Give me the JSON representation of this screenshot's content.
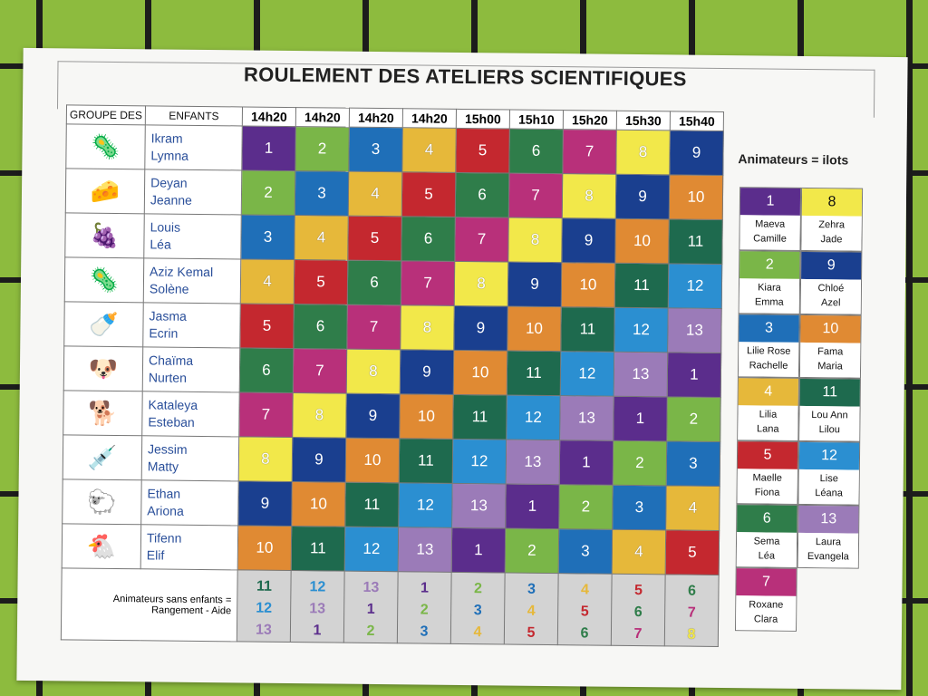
{
  "title": "ROULEMENT DES ATELIERS SCIENTIFIQUES",
  "header": {
    "col1": "GROUPE DES",
    "col2": "ENFANTS"
  },
  "times": [
    "14h20",
    "14h20",
    "14h20",
    "14h20",
    "15h00",
    "15h10",
    "15h20",
    "15h30",
    "15h40"
  ],
  "colors": {
    "1": "#5b2d8c",
    "2": "#7ab648",
    "3": "#1f6fb8",
    "4": "#e6b83a",
    "5": "#c4282f",
    "6": "#2f7d4a",
    "7": "#b8307a",
    "8": "#f2e84a",
    "9": "#1a3f8f",
    "10": "#e08a33",
    "11": "#1e6a4e",
    "12": "#2b8fd1",
    "13": "#9b7bb8"
  },
  "groups": [
    {
      "icon": "microbe-icon",
      "glyph": "🦠",
      "names": [
        "Ikram",
        "Lymna"
      ],
      "cells": [
        1,
        2,
        3,
        4,
        5,
        6,
        7,
        8,
        9
      ]
    },
    {
      "icon": "cheese-icon",
      "glyph": "🧀",
      "names": [
        "Deyan",
        "Jeanne"
      ],
      "cells": [
        2,
        3,
        4,
        5,
        6,
        7,
        8,
        9,
        10
      ]
    },
    {
      "icon": "grapes-icon",
      "glyph": "🍇",
      "names": [
        "Louis",
        "Léa"
      ],
      "cells": [
        3,
        4,
        5,
        6,
        7,
        8,
        9,
        10,
        11
      ]
    },
    {
      "icon": "virus-icon",
      "glyph": "🦠",
      "names": [
        "Aziz Kemal",
        "Solène"
      ],
      "cells": [
        4,
        5,
        6,
        7,
        8,
        9,
        10,
        11,
        12
      ]
    },
    {
      "icon": "milk-bottle-icon",
      "glyph": "🍼",
      "names": [
        "Jasma",
        "Ecrin"
      ],
      "cells": [
        5,
        6,
        7,
        8,
        9,
        10,
        11,
        12,
        13
      ]
    },
    {
      "icon": "dog-icon",
      "glyph": "🐶",
      "names": [
        "Chaïma",
        "Nurten"
      ],
      "cells": [
        6,
        7,
        8,
        9,
        10,
        11,
        12,
        13,
        1
      ]
    },
    {
      "icon": "running-dog-icon",
      "glyph": "🐕",
      "names": [
        "Kataleya",
        "Esteban"
      ],
      "cells": [
        7,
        8,
        9,
        10,
        11,
        12,
        13,
        1,
        2
      ]
    },
    {
      "icon": "syringe-icon",
      "glyph": "💉",
      "names": [
        "Jessim",
        "Matty"
      ],
      "cells": [
        8,
        9,
        10,
        11,
        12,
        13,
        1,
        2,
        3
      ]
    },
    {
      "icon": "sheep-icon",
      "glyph": "🐑",
      "names": [
        "Ethan",
        "Ariona"
      ],
      "cells": [
        9,
        10,
        11,
        12,
        13,
        1,
        2,
        3,
        4
      ]
    },
    {
      "icon": "chicken-icon",
      "glyph": "🐔",
      "names": [
        "Tifenn",
        "Elif"
      ],
      "cells": [
        10,
        11,
        12,
        13,
        1,
        2,
        3,
        4,
        5
      ]
    }
  ],
  "footer": {
    "label1": "Animateurs sans enfants =",
    "label2": "Rangement - Aide",
    "cols": [
      [
        11,
        12,
        13
      ],
      [
        12,
        13,
        1
      ],
      [
        13,
        1,
        2
      ],
      [
        1,
        2,
        3
      ],
      [
        2,
        3,
        4
      ],
      [
        3,
        4,
        5
      ],
      [
        4,
        5,
        6
      ],
      [
        5,
        6,
        7
      ],
      [
        6,
        7,
        8
      ]
    ]
  },
  "side_title": "Animateurs = ilots",
  "legend": [
    [
      {
        "n": 1,
        "names": [
          "Maeva",
          "Camille"
        ]
      },
      {
        "n": 8,
        "names": [
          "Zehra",
          "Jade"
        ]
      }
    ],
    [
      {
        "n": 2,
        "names": [
          "Kiara",
          "Emma"
        ]
      },
      {
        "n": 9,
        "names": [
          "Chloé",
          "Azel"
        ]
      }
    ],
    [
      {
        "n": 3,
        "names": [
          "Lilie Rose",
          "Rachelle"
        ]
      },
      {
        "n": 10,
        "names": [
          "Fama",
          "Maria"
        ]
      }
    ],
    [
      {
        "n": 4,
        "names": [
          "Lilia",
          "Lana"
        ]
      },
      {
        "n": 11,
        "names": [
          "Lou Ann",
          "Lilou"
        ]
      }
    ],
    [
      {
        "n": 5,
        "names": [
          "Maelle",
          "Fiona"
        ]
      },
      {
        "n": 12,
        "names": [
          "Lise",
          "Léana"
        ]
      }
    ],
    [
      {
        "n": 6,
        "names": [
          "Sema",
          "Léa"
        ]
      },
      {
        "n": 13,
        "names": [
          "Laura",
          "Evangela"
        ]
      }
    ],
    [
      {
        "n": 7,
        "names": [
          "Roxane",
          "Clara"
        ]
      }
    ]
  ]
}
